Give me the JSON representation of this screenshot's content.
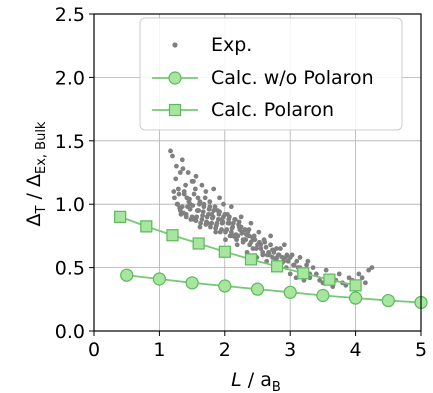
{
  "chart_data": {
    "type": "scatter",
    "xlabel": {
      "main": "L",
      "sep": " / a",
      "sub": "B"
    },
    "ylabel": {
      "main": "Δ",
      "sub1": "T",
      "mid": " / Δ",
      "sub2": "Ex, Bulk"
    },
    "xlim": [
      0,
      5
    ],
    "ylim": [
      0,
      2.5
    ],
    "xticks": [
      "0",
      "1",
      "2",
      "3",
      "4",
      "5"
    ],
    "yticks": [
      "0.0",
      "0.5",
      "1.0",
      "1.5",
      "2.0",
      "2.5"
    ],
    "grid": true,
    "legend_position": "top-right",
    "colors": {
      "exp": "#808080",
      "calc_line": "#77c977",
      "calc_fill": "#a8e6a0",
      "calc_edge": "#5cb85c",
      "grid": "#b0b0b0"
    },
    "series": [
      {
        "name": "Exp.",
        "kind": "scatter",
        "x": [
          1.17,
          1.2,
          1.23,
          1.26,
          1.29,
          1.32,
          1.35,
          1.38,
          1.41,
          1.44,
          1.47,
          1.5,
          1.53,
          1.56,
          1.59,
          1.62,
          1.65,
          1.68,
          1.71,
          1.74,
          1.77,
          1.8,
          1.83,
          1.86,
          1.89,
          1.92,
          1.95,
          1.98,
          2.01,
          2.04,
          2.07,
          2.1,
          2.13,
          2.16,
          2.19,
          2.22,
          2.25,
          2.28,
          2.31,
          2.34,
          2.37,
          2.4,
          2.43,
          2.46,
          2.49,
          2.52,
          2.55,
          2.58,
          2.61,
          2.64,
          2.67,
          2.7,
          2.73,
          2.76,
          2.79,
          2.82,
          2.85,
          2.88,
          2.91,
          2.94,
          2.97,
          3.0,
          3.03,
          3.06,
          3.09,
          3.12,
          3.15,
          3.18,
          3.21,
          3.24,
          3.27,
          3.3,
          3.35,
          3.4,
          3.45,
          3.5,
          3.55,
          3.6,
          3.65,
          3.7,
          3.75,
          3.8,
          3.85,
          3.9,
          3.95,
          4.0,
          4.05,
          4.1,
          4.15,
          4.2,
          4.25,
          1.25,
          1.3,
          1.35,
          1.4,
          1.45,
          1.5,
          1.55,
          1.6,
          1.65,
          1.7,
          1.75,
          1.8,
          1.85,
          1.9,
          1.95,
          2.0,
          2.05,
          2.1,
          2.15,
          2.2,
          2.25,
          2.3,
          2.35,
          2.4,
          2.45,
          2.5,
          2.55,
          2.6,
          2.65,
          2.7,
          2.75,
          2.8,
          2.85,
          2.9,
          2.95,
          3.0,
          3.05,
          3.1,
          3.15,
          3.2,
          3.25,
          3.3,
          1.28,
          1.33,
          1.38,
          1.43,
          1.48,
          1.53,
          1.58,
          1.63,
          1.68,
          1.73,
          1.78,
          1.83,
          1.88,
          1.93,
          1.98,
          2.03,
          2.08,
          2.13,
          2.18,
          2.23,
          2.28,
          2.33,
          2.38,
          2.43,
          2.48,
          2.53,
          2.58,
          2.63,
          2.68,
          2.73,
          2.78,
          2.83,
          2.88,
          2.93,
          1.22,
          1.27,
          1.32,
          1.37,
          1.42,
          1.47,
          1.52,
          1.57,
          1.62,
          1.67,
          1.72,
          1.77,
          1.82,
          1.87,
          1.92,
          1.97,
          2.02,
          2.07,
          2.12,
          2.17,
          2.22,
          2.27,
          2.32,
          2.37,
          2.42,
          1.31,
          1.36,
          1.41,
          1.46,
          1.51,
          1.56,
          1.61,
          1.66,
          1.71,
          1.76,
          1.81,
          1.86,
          1.91,
          1.96,
          2.01,
          2.06,
          2.11,
          2.16,
          2.21,
          2.26
        ],
        "y": [
          1.42,
          1.38,
          1.05,
          1.3,
          1.12,
          0.95,
          1.35,
          1.08,
          0.9,
          1.25,
          1.0,
          1.18,
          0.88,
          1.22,
          1.05,
          0.82,
          1.15,
          0.98,
          1.1,
          0.85,
          1.02,
          0.92,
          1.12,
          0.78,
          0.95,
          1.05,
          0.88,
          1.0,
          0.72,
          0.92,
          0.85,
          0.98,
          0.75,
          0.88,
          0.68,
          0.82,
          0.9,
          0.72,
          0.8,
          0.62,
          0.75,
          0.85,
          0.65,
          0.72,
          0.58,
          0.78,
          0.68,
          0.6,
          0.7,
          0.55,
          0.62,
          0.75,
          0.58,
          0.52,
          0.65,
          0.6,
          0.48,
          0.58,
          0.68,
          0.5,
          0.55,
          0.45,
          0.6,
          0.52,
          0.42,
          0.5,
          0.58,
          0.45,
          0.4,
          0.48,
          0.55,
          0.42,
          0.5,
          0.45,
          0.4,
          0.38,
          0.48,
          0.42,
          0.35,
          0.4,
          0.45,
          0.38,
          0.36,
          0.42,
          0.4,
          0.35,
          0.45,
          0.42,
          0.38,
          0.48,
          0.5,
          1.2,
          1.08,
          0.98,
          1.15,
          1.02,
          0.9,
          1.12,
          0.95,
          0.88,
          1.05,
          0.92,
          0.85,
          0.98,
          0.88,
          0.8,
          0.92,
          0.85,
          0.78,
          0.88,
          0.75,
          0.82,
          0.72,
          0.78,
          0.7,
          0.75,
          0.68,
          0.65,
          0.72,
          0.6,
          0.68,
          0.62,
          0.58,
          0.65,
          0.55,
          0.6,
          0.58,
          0.52,
          0.55,
          0.5,
          0.48,
          0.52,
          0.45,
          1.0,
          0.92,
          1.1,
          0.98,
          0.88,
          1.08,
          0.95,
          0.85,
          1.0,
          0.9,
          0.82,
          0.95,
          0.85,
          0.78,
          0.9,
          0.8,
          0.75,
          0.85,
          0.72,
          0.8,
          0.7,
          0.76,
          0.68,
          0.72,
          0.65,
          0.7,
          0.62,
          0.66,
          0.6,
          0.64,
          0.56,
          0.6,
          0.54,
          0.58,
          1.1,
          1.0,
          1.25,
          0.93,
          1.05,
          0.96,
          1.18,
          0.9,
          1.02,
          0.94,
          0.86,
          0.98,
          0.9,
          0.83,
          0.94,
          0.86,
          0.79,
          0.9,
          0.82,
          0.76,
          0.86,
          0.78,
          0.72,
          0.8,
          0.74,
          0.97,
          1.28,
          0.92,
          1.04,
          0.99,
          0.87,
          1.0,
          0.91,
          0.84,
          0.96,
          0.89,
          0.81,
          0.92,
          0.85,
          0.78,
          0.88,
          0.81,
          0.74,
          0.84,
          0.77
        ]
      },
      {
        "name": "Calc. w/o Polaron",
        "kind": "line-marker",
        "marker": "circle",
        "x": [
          0.5,
          1.0,
          1.5,
          2.0,
          2.5,
          3.0,
          3.5,
          4.0,
          4.5,
          5.0
        ],
        "y": [
          0.44,
          0.41,
          0.38,
          0.355,
          0.33,
          0.305,
          0.28,
          0.26,
          0.24,
          0.225
        ]
      },
      {
        "name": "Calc. Polaron",
        "kind": "line-marker",
        "marker": "square",
        "x": [
          0.4,
          0.8,
          1.2,
          1.6,
          2.0,
          2.4,
          2.8,
          3.2,
          3.6,
          4.0
        ],
        "y": [
          0.9,
          0.825,
          0.755,
          0.69,
          0.625,
          0.565,
          0.51,
          0.455,
          0.405,
          0.36
        ]
      }
    ]
  }
}
